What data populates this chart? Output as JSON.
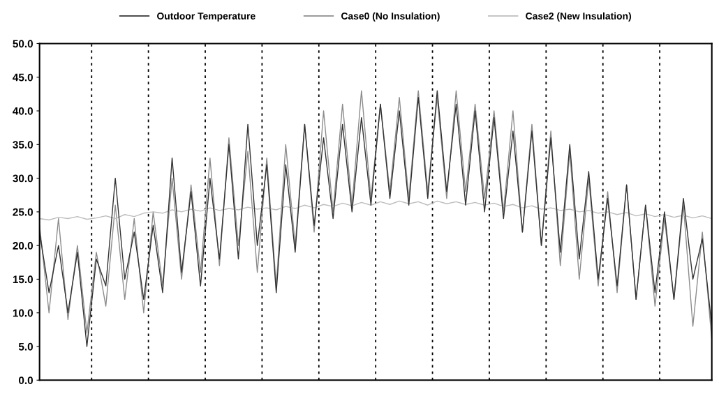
{
  "chart_data": {
    "type": "line",
    "categories": [
      null,
      null,
      null,
      null,
      null,
      null,
      null,
      null,
      null,
      null,
      null,
      null,
      null,
      null,
      null,
      null,
      null,
      null,
      null,
      null,
      null,
      null,
      null,
      null,
      null,
      null,
      null,
      null,
      null,
      null,
      null,
      null,
      null,
      null,
      null,
      null,
      null,
      null,
      null,
      null,
      null,
      null,
      null,
      null,
      null,
      null,
      null,
      null,
      null,
      null,
      null,
      null,
      null,
      null,
      null,
      null,
      null,
      null,
      null,
      null,
      null,
      null,
      null,
      null,
      null,
      null,
      null,
      null,
      null,
      null,
      null,
      null
    ],
    "ylim": [
      0,
      50
    ],
    "yticks": [
      {
        "value": 0,
        "label": "0.0"
      },
      {
        "value": 5,
        "label": "5.0"
      },
      {
        "value": 10,
        "label": "10.0"
      },
      {
        "value": 15,
        "label": "15.0"
      },
      {
        "value": 20,
        "label": "20.0"
      },
      {
        "value": 25,
        "label": "25.0"
      },
      {
        "value": 30,
        "label": "30.0"
      },
      {
        "value": 35,
        "label": "35.0"
      },
      {
        "value": 40,
        "label": "40.0"
      },
      {
        "value": 45,
        "label": "45.0"
      },
      {
        "value": 50,
        "label": "50.0"
      }
    ],
    "tick_labels": "y",
    "grid": "x",
    "legend": "top",
    "line_style": "solid",
    "series": [
      {
        "name": "Outdoor Temperature",
        "color": "#333333",
        "values": [
          22,
          13,
          20,
          10,
          19,
          5,
          18,
          14,
          30,
          15,
          22,
          12,
          23,
          13,
          33,
          16,
          28,
          14,
          30,
          18,
          35,
          18,
          38,
          20,
          32,
          13,
          32,
          19,
          38,
          23,
          36,
          24,
          38,
          25,
          39,
          26,
          41,
          27,
          40,
          26,
          42,
          27,
          43,
          28,
          41,
          26,
          40,
          25,
          39,
          24,
          37,
          22,
          37,
          20,
          36,
          19,
          35,
          18,
          31,
          15,
          27,
          14,
          29,
          12,
          26,
          13,
          25,
          12,
          27,
          15,
          21,
          8
        ]
      },
      {
        "name": "Case0 (No Insulation)",
        "color": "#8c8c8c",
        "values": [
          23,
          10,
          24,
          9,
          20,
          7,
          19,
          11,
          26,
          12,
          24,
          10,
          25,
          14,
          30,
          15,
          29,
          16,
          33,
          17,
          36,
          20,
          34,
          16,
          33,
          14,
          35,
          20,
          38,
          22,
          40,
          25,
          41,
          26,
          43,
          27,
          41,
          28,
          42,
          27,
          43,
          28,
          42,
          27,
          43,
          28,
          41,
          27,
          40,
          25,
          40,
          22,
          38,
          20,
          37,
          17,
          34,
          15,
          30,
          14,
          28,
          13,
          29,
          12,
          26,
          11,
          24,
          12,
          26,
          8,
          22,
          6
        ]
      },
      {
        "name": "Case2 (New Insulation)",
        "color": "#bdbdbd",
        "values": [
          24.0,
          23.8,
          24.2,
          24.0,
          24.3,
          23.9,
          24.1,
          24.4,
          24.0,
          24.6,
          24.3,
          24.8,
          25.0,
          24.8,
          25.3,
          25.0,
          25.4,
          25.1,
          25.6,
          25.2,
          25.5,
          25.3,
          25.7,
          25.4,
          25.6,
          25.3,
          25.8,
          25.5,
          26.0,
          25.6,
          26.1,
          25.8,
          26.3,
          25.9,
          26.4,
          26.0,
          26.5,
          26.1,
          26.6,
          26.2,
          26.5,
          26.0,
          26.6,
          26.2,
          26.5,
          26.1,
          26.4,
          26.0,
          26.3,
          25.8,
          26.1,
          25.6,
          25.9,
          25.4,
          25.6,
          25.2,
          25.4,
          25.0,
          25.2,
          24.8,
          25.0,
          24.6,
          24.9,
          24.4,
          24.7,
          24.3,
          24.6,
          24.2,
          24.5,
          24.1,
          24.4,
          24.0
        ]
      }
    ]
  }
}
